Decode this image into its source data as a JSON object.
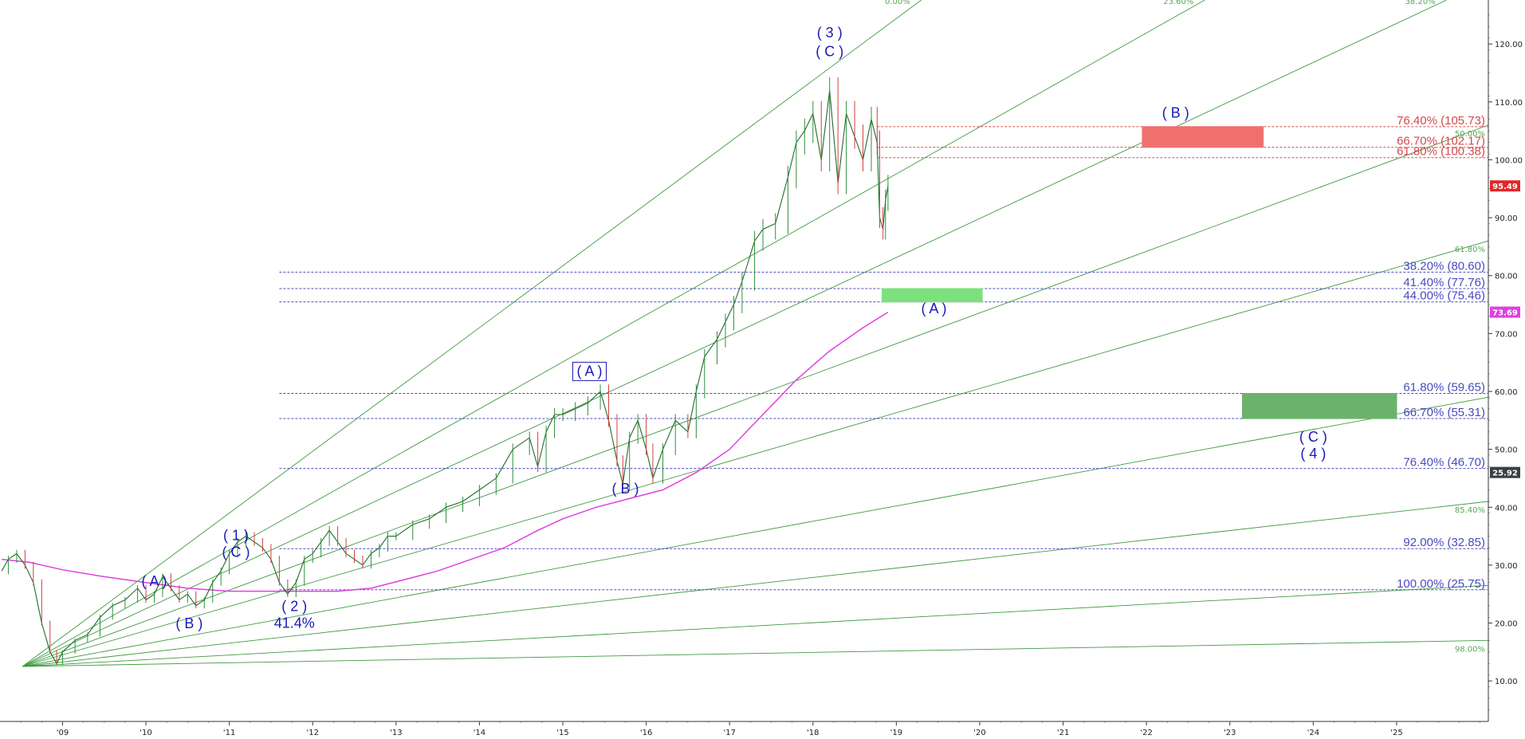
{
  "chart_data": {
    "type": "line",
    "title": "",
    "xlabel": "",
    "ylabel": "",
    "x_ticks": [
      "'09",
      "'10",
      "'11",
      "'12",
      "'13",
      "'14",
      "'15",
      "'16",
      "'17",
      "'18",
      "'19",
      "'20",
      "'21",
      "'22",
      "'23",
      "'24",
      "'25"
    ],
    "y_ticks": [
      "10.00",
      "20.00",
      "30.00",
      "40.00",
      "50.00",
      "60.00",
      "70.00",
      "80.00",
      "90.00",
      "100.00",
      "110.00",
      "120.00"
    ],
    "xlim": [
      2008.25,
      2026.1
    ],
    "ylim": [
      3.0,
      127.6
    ],
    "grid": false,
    "series": [
      {
        "role": "price",
        "color": "#2f8f3a",
        "points": [
          [
            2008.27,
            29
          ],
          [
            2008.35,
            31
          ],
          [
            2008.45,
            32
          ],
          [
            2008.55,
            30
          ],
          [
            2008.65,
            27
          ],
          [
            2008.75,
            20
          ],
          [
            2008.85,
            15
          ],
          [
            2008.93,
            13
          ],
          [
            2009.0,
            15
          ],
          [
            2009.15,
            17
          ],
          [
            2009.3,
            18
          ],
          [
            2009.45,
            21
          ],
          [
            2009.6,
            23
          ],
          [
            2009.75,
            24
          ],
          [
            2009.9,
            26
          ],
          [
            2010.0,
            24
          ],
          [
            2010.1,
            25
          ],
          [
            2010.2,
            28
          ],
          [
            2010.3,
            26
          ],
          [
            2010.4,
            24
          ],
          [
            2010.5,
            25
          ],
          [
            2010.6,
            23
          ],
          [
            2010.7,
            24
          ],
          [
            2010.8,
            27
          ],
          [
            2010.9,
            29
          ],
          [
            2011.0,
            32
          ],
          [
            2011.1,
            34
          ],
          [
            2011.2,
            35
          ],
          [
            2011.3,
            34
          ],
          [
            2011.4,
            33
          ],
          [
            2011.5,
            31
          ],
          [
            2011.6,
            27
          ],
          [
            2011.7,
            25
          ],
          [
            2011.8,
            27
          ],
          [
            2011.9,
            31
          ],
          [
            2012.0,
            32
          ],
          [
            2012.1,
            34
          ],
          [
            2012.2,
            36
          ],
          [
            2012.3,
            34
          ],
          [
            2012.4,
            32
          ],
          [
            2012.5,
            31
          ],
          [
            2012.6,
            30
          ],
          [
            2012.7,
            32
          ],
          [
            2012.8,
            33
          ],
          [
            2012.9,
            35
          ],
          [
            2013.0,
            35
          ],
          [
            2013.2,
            37
          ],
          [
            2013.4,
            38
          ],
          [
            2013.6,
            40
          ],
          [
            2013.8,
            41
          ],
          [
            2014.0,
            43
          ],
          [
            2014.2,
            45
          ],
          [
            2014.4,
            50
          ],
          [
            2014.6,
            52
          ],
          [
            2014.7,
            47
          ],
          [
            2014.8,
            53
          ],
          [
            2014.9,
            56
          ],
          [
            2015.0,
            56
          ],
          [
            2015.15,
            57
          ],
          [
            2015.3,
            58
          ],
          [
            2015.45,
            60
          ],
          [
            2015.55,
            55
          ],
          [
            2015.65,
            48
          ],
          [
            2015.72,
            44
          ],
          [
            2015.8,
            52
          ],
          [
            2015.9,
            55
          ],
          [
            2016.0,
            50
          ],
          [
            2016.08,
            45
          ],
          [
            2016.2,
            50
          ],
          [
            2016.35,
            55
          ],
          [
            2016.5,
            53
          ],
          [
            2016.6,
            60
          ],
          [
            2016.7,
            66
          ],
          [
            2016.85,
            69
          ],
          [
            2016.95,
            72
          ],
          [
            2017.05,
            75
          ],
          [
            2017.15,
            79
          ],
          [
            2017.3,
            86
          ],
          [
            2017.4,
            88
          ],
          [
            2017.55,
            89
          ],
          [
            2017.7,
            97
          ],
          [
            2017.8,
            103
          ],
          [
            2017.9,
            105
          ],
          [
            2018.0,
            108
          ],
          [
            2018.1,
            100
          ],
          [
            2018.2,
            112
          ],
          [
            2018.3,
            96
          ],
          [
            2018.4,
            108
          ],
          [
            2018.5,
            104
          ],
          [
            2018.6,
            100
          ],
          [
            2018.7,
            107
          ],
          [
            2018.77,
            103
          ],
          [
            2018.8,
            90
          ],
          [
            2018.84,
            88
          ],
          [
            2018.87,
            93
          ],
          [
            2018.9,
            95.49
          ]
        ]
      },
      {
        "role": "moving-average",
        "color": "#e040e0",
        "points": [
          [
            2008.27,
            31
          ],
          [
            2008.6,
            30.5
          ],
          [
            2009.0,
            29.2
          ],
          [
            2009.5,
            28
          ],
          [
            2010.0,
            27
          ],
          [
            2010.5,
            26
          ],
          [
            2011.0,
            25.5
          ],
          [
            2011.7,
            25.5
          ],
          [
            2012.3,
            25.5
          ],
          [
            2012.7,
            26
          ],
          [
            2013.1,
            27.5
          ],
          [
            2013.5,
            29
          ],
          [
            2013.9,
            31
          ],
          [
            2014.3,
            33
          ],
          [
            2014.7,
            36
          ],
          [
            2015.0,
            38
          ],
          [
            2015.4,
            40
          ],
          [
            2015.8,
            41.5
          ],
          [
            2016.2,
            43
          ],
          [
            2016.6,
            46
          ],
          [
            2017.0,
            50
          ],
          [
            2017.4,
            56
          ],
          [
            2017.8,
            62
          ],
          [
            2018.2,
            67
          ],
          [
            2018.6,
            71
          ],
          [
            2018.9,
            73.69
          ]
        ]
      }
    ],
    "fib_levels": [
      {
        "label": "76.40% (105.73)",
        "value": 105.73,
        "color": "#d24a4a"
      },
      {
        "label": "66.70% (102.17)",
        "value": 102.17,
        "color": "#d24a4a"
      },
      {
        "label": "61.80% (100.38)",
        "value": 100.38,
        "color": "#d24a4a"
      },
      {
        "label": "38.20% (80.60)",
        "value": 80.6,
        "color": "#4a4ac0"
      },
      {
        "label": "41.40% (77.76)",
        "value": 77.76,
        "color": "#4a4ac0"
      },
      {
        "label": "44.00% (75.46)",
        "value": 75.46,
        "color": "#4a4ac0"
      },
      {
        "label": "61.80% (59.65)",
        "value": 59.65,
        "color": "#4a4ac0"
      },
      {
        "label": "66.70% (55.31)",
        "value": 55.31,
        "color": "#4a4ac0"
      },
      {
        "label": "76.40% (46.70)",
        "value": 46.7,
        "color": "#4a4ac0"
      },
      {
        "label": "92.00% (32.85)",
        "value": 32.85,
        "color": "#4a4ac0"
      },
      {
        "label": "100.00% (25.75)",
        "value": 25.75,
        "color": "#4a4ac0"
      }
    ],
    "fan_lines": [
      {
        "label": "0.00%",
        "end": [
          2019.3,
          127.6
        ]
      },
      {
        "label": "23.60%",
        "end": [
          2022.7,
          127.6
        ]
      },
      {
        "label": "38.20%",
        "end": [
          2025.6,
          127.6
        ]
      },
      {
        "label": "50.00%",
        "end": [
          2026.1,
          106.0
        ]
      },
      {
        "label": "61.80%",
        "end": [
          2026.1,
          86.0
        ]
      },
      {
        "label": "",
        "end": [
          2026.1,
          59.0
        ]
      },
      {
        "label": "85.40%",
        "end": [
          2026.1,
          41.0
        ]
      },
      {
        "label": "",
        "end": [
          2026.1,
          26.5
        ]
      },
      {
        "label": "98.00%",
        "end": [
          2026.1,
          17.0
        ]
      }
    ],
    "fan_origin": [
      2008.52,
      12.5
    ],
    "zones": [
      {
        "x": [
          2021.95,
          2023.4
        ],
        "y": [
          102.17,
          105.73
        ],
        "color": "#f07070"
      },
      {
        "x": [
          2018.83,
          2020.03
        ],
        "y": [
          75.46,
          77.76
        ],
        "color": "#7ce07c"
      },
      {
        "x": [
          2023.15,
          2025.0
        ],
        "y": [
          55.31,
          59.65
        ],
        "color": "#6cb26c"
      }
    ],
    "wave_labels": [
      {
        "text": "( 3 )",
        "x": 2018.2,
        "y": 121.1
      },
      {
        "text": "( C )",
        "x": 2018.2,
        "y": 117.9
      },
      {
        "text": "( 1 )",
        "x": 2011.08,
        "y": 34.3
      },
      {
        "text": "( C )",
        "x": 2011.08,
        "y": 31.4
      },
      {
        "text": "( A )",
        "x": 2010.1,
        "y": 26.4
      },
      {
        "text": "( B )",
        "x": 2010.52,
        "y": 19.1
      },
      {
        "text": "( 2 )",
        "x": 2011.78,
        "y": 22.1
      },
      {
        "text": "41.4%",
        "x": 2011.78,
        "y": 19.2
      },
      {
        "text": "( A )",
        "x": 2015.32,
        "y": 62.7,
        "boxed": true
      },
      {
        "text": "( B )",
        "x": 2015.75,
        "y": 42.4
      },
      {
        "text": "( B )",
        "x": 2022.35,
        "y": 107.3
      },
      {
        "text": "( A )",
        "x": 2019.45,
        "y": 73.5
      },
      {
        "text": "( C )",
        "x": 2024.0,
        "y": 51.3
      },
      {
        "text": "( 4 )",
        "x": 2024.0,
        "y": 48.4
      }
    ],
    "price_badges": [
      {
        "value": "95.49",
        "y": 95.49,
        "color": "#e02828"
      },
      {
        "value": "73.69",
        "y": 73.69,
        "color": "#e040e0"
      },
      {
        "value": "25.92",
        "y": 46.0,
        "color": "#3a3f44"
      }
    ]
  }
}
